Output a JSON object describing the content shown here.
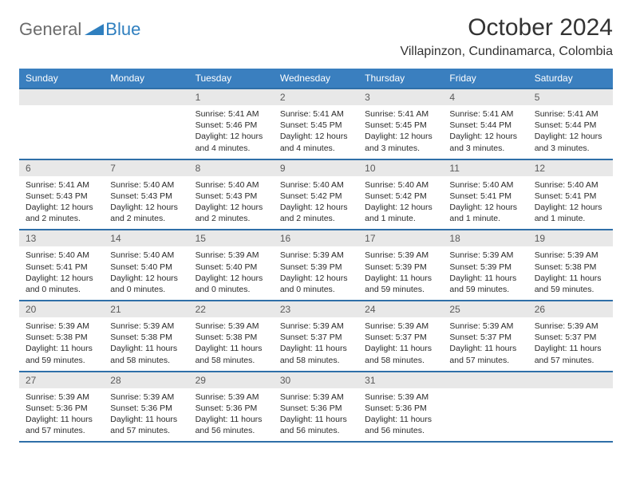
{
  "logo": {
    "general": "General",
    "blue": "Blue"
  },
  "title": "October 2024",
  "location": "Villapinzon, Cundinamarca, Colombia",
  "colors": {
    "header_bg": "#3a7fbf",
    "border": "#2f6fa8",
    "daynum_bg": "#e8e8e8",
    "text": "#333333"
  },
  "weekdays": [
    "Sunday",
    "Monday",
    "Tuesday",
    "Wednesday",
    "Thursday",
    "Friday",
    "Saturday"
  ],
  "weeks": [
    [
      null,
      null,
      {
        "n": "1",
        "sr": "Sunrise: 5:41 AM",
        "ss": "Sunset: 5:46 PM",
        "dl": "Daylight: 12 hours and 4 minutes."
      },
      {
        "n": "2",
        "sr": "Sunrise: 5:41 AM",
        "ss": "Sunset: 5:45 PM",
        "dl": "Daylight: 12 hours and 4 minutes."
      },
      {
        "n": "3",
        "sr": "Sunrise: 5:41 AM",
        "ss": "Sunset: 5:45 PM",
        "dl": "Daylight: 12 hours and 3 minutes."
      },
      {
        "n": "4",
        "sr": "Sunrise: 5:41 AM",
        "ss": "Sunset: 5:44 PM",
        "dl": "Daylight: 12 hours and 3 minutes."
      },
      {
        "n": "5",
        "sr": "Sunrise: 5:41 AM",
        "ss": "Sunset: 5:44 PM",
        "dl": "Daylight: 12 hours and 3 minutes."
      }
    ],
    [
      {
        "n": "6",
        "sr": "Sunrise: 5:41 AM",
        "ss": "Sunset: 5:43 PM",
        "dl": "Daylight: 12 hours and 2 minutes."
      },
      {
        "n": "7",
        "sr": "Sunrise: 5:40 AM",
        "ss": "Sunset: 5:43 PM",
        "dl": "Daylight: 12 hours and 2 minutes."
      },
      {
        "n": "8",
        "sr": "Sunrise: 5:40 AM",
        "ss": "Sunset: 5:43 PM",
        "dl": "Daylight: 12 hours and 2 minutes."
      },
      {
        "n": "9",
        "sr": "Sunrise: 5:40 AM",
        "ss": "Sunset: 5:42 PM",
        "dl": "Daylight: 12 hours and 2 minutes."
      },
      {
        "n": "10",
        "sr": "Sunrise: 5:40 AM",
        "ss": "Sunset: 5:42 PM",
        "dl": "Daylight: 12 hours and 1 minute."
      },
      {
        "n": "11",
        "sr": "Sunrise: 5:40 AM",
        "ss": "Sunset: 5:41 PM",
        "dl": "Daylight: 12 hours and 1 minute."
      },
      {
        "n": "12",
        "sr": "Sunrise: 5:40 AM",
        "ss": "Sunset: 5:41 PM",
        "dl": "Daylight: 12 hours and 1 minute."
      }
    ],
    [
      {
        "n": "13",
        "sr": "Sunrise: 5:40 AM",
        "ss": "Sunset: 5:41 PM",
        "dl": "Daylight: 12 hours and 0 minutes."
      },
      {
        "n": "14",
        "sr": "Sunrise: 5:40 AM",
        "ss": "Sunset: 5:40 PM",
        "dl": "Daylight: 12 hours and 0 minutes."
      },
      {
        "n": "15",
        "sr": "Sunrise: 5:39 AM",
        "ss": "Sunset: 5:40 PM",
        "dl": "Daylight: 12 hours and 0 minutes."
      },
      {
        "n": "16",
        "sr": "Sunrise: 5:39 AM",
        "ss": "Sunset: 5:39 PM",
        "dl": "Daylight: 12 hours and 0 minutes."
      },
      {
        "n": "17",
        "sr": "Sunrise: 5:39 AM",
        "ss": "Sunset: 5:39 PM",
        "dl": "Daylight: 11 hours and 59 minutes."
      },
      {
        "n": "18",
        "sr": "Sunrise: 5:39 AM",
        "ss": "Sunset: 5:39 PM",
        "dl": "Daylight: 11 hours and 59 minutes."
      },
      {
        "n": "19",
        "sr": "Sunrise: 5:39 AM",
        "ss": "Sunset: 5:38 PM",
        "dl": "Daylight: 11 hours and 59 minutes."
      }
    ],
    [
      {
        "n": "20",
        "sr": "Sunrise: 5:39 AM",
        "ss": "Sunset: 5:38 PM",
        "dl": "Daylight: 11 hours and 59 minutes."
      },
      {
        "n": "21",
        "sr": "Sunrise: 5:39 AM",
        "ss": "Sunset: 5:38 PM",
        "dl": "Daylight: 11 hours and 58 minutes."
      },
      {
        "n": "22",
        "sr": "Sunrise: 5:39 AM",
        "ss": "Sunset: 5:38 PM",
        "dl": "Daylight: 11 hours and 58 minutes."
      },
      {
        "n": "23",
        "sr": "Sunrise: 5:39 AM",
        "ss": "Sunset: 5:37 PM",
        "dl": "Daylight: 11 hours and 58 minutes."
      },
      {
        "n": "24",
        "sr": "Sunrise: 5:39 AM",
        "ss": "Sunset: 5:37 PM",
        "dl": "Daylight: 11 hours and 58 minutes."
      },
      {
        "n": "25",
        "sr": "Sunrise: 5:39 AM",
        "ss": "Sunset: 5:37 PM",
        "dl": "Daylight: 11 hours and 57 minutes."
      },
      {
        "n": "26",
        "sr": "Sunrise: 5:39 AM",
        "ss": "Sunset: 5:37 PM",
        "dl": "Daylight: 11 hours and 57 minutes."
      }
    ],
    [
      {
        "n": "27",
        "sr": "Sunrise: 5:39 AM",
        "ss": "Sunset: 5:36 PM",
        "dl": "Daylight: 11 hours and 57 minutes."
      },
      {
        "n": "28",
        "sr": "Sunrise: 5:39 AM",
        "ss": "Sunset: 5:36 PM",
        "dl": "Daylight: 11 hours and 57 minutes."
      },
      {
        "n": "29",
        "sr": "Sunrise: 5:39 AM",
        "ss": "Sunset: 5:36 PM",
        "dl": "Daylight: 11 hours and 56 minutes."
      },
      {
        "n": "30",
        "sr": "Sunrise: 5:39 AM",
        "ss": "Sunset: 5:36 PM",
        "dl": "Daylight: 11 hours and 56 minutes."
      },
      {
        "n": "31",
        "sr": "Sunrise: 5:39 AM",
        "ss": "Sunset: 5:36 PM",
        "dl": "Daylight: 11 hours and 56 minutes."
      },
      null,
      null
    ]
  ]
}
